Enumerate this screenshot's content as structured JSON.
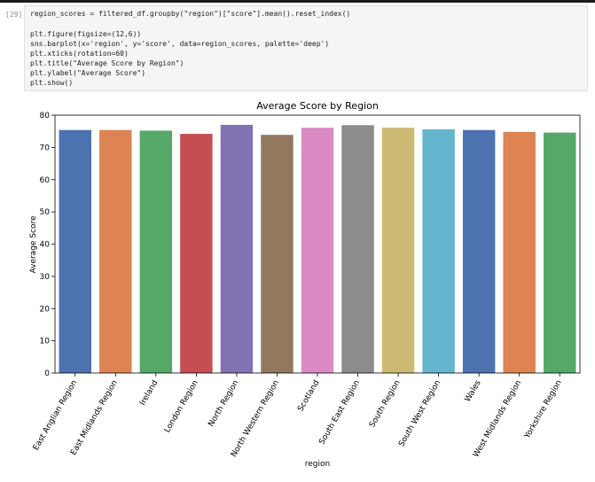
{
  "cell": {
    "prompt": "[29]:",
    "code_lines": [
      "region_scores = filtered_df.groupby(\"region\")[\"score\"].mean().reset_index()",
      "",
      "plt.figure(figsize=(12,6))",
      "sns.barplot(x='region', y='score', data=region_scores, palette='deep')",
      "plt.xticks(rotation=60)",
      "plt.title(\"Average Score by Region\")",
      "plt.ylabel(\"Average Score\")",
      "plt.show()"
    ]
  },
  "chart_data": {
    "type": "bar",
    "title": "Average Score by Region",
    "xlabel": "region",
    "ylabel": "Average Score",
    "ylim": [
      0,
      80
    ],
    "yticks": [
      0,
      10,
      20,
      30,
      40,
      50,
      60,
      70,
      80
    ],
    "tick_rotation": 60,
    "grid": false,
    "categories": [
      "East Anglian Region",
      "East Midlands Region",
      "Ireland",
      "London Region",
      "North Region",
      "North Western Region",
      "Scotland",
      "South East Region",
      "South Region",
      "South West Region",
      "Wales",
      "West Midlands Region",
      "Yorkshire Region"
    ],
    "values": [
      75.4,
      75.4,
      75.2,
      74.2,
      77.0,
      73.9,
      76.1,
      76.9,
      76.1,
      75.6,
      75.4,
      74.8,
      74.6
    ],
    "colors": [
      "#4c72b0",
      "#dd8452",
      "#55a868",
      "#c44e52",
      "#8172b3",
      "#937860",
      "#da8bc3",
      "#8c8c8c",
      "#ccb974",
      "#64b5cd",
      "#4c72b0",
      "#dd8452",
      "#55a868"
    ]
  }
}
